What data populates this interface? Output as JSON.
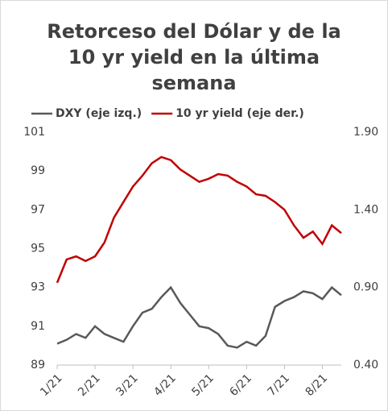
{
  "chart_data": {
    "type": "line",
    "title": "Retorceso del Dólar y de la 10 yr yield en la última semana",
    "categories": [
      "1/21",
      null,
      null,
      null,
      "2/21",
      null,
      null,
      null,
      "3/21",
      null,
      null,
      null,
      "4/21",
      null,
      null,
      null,
      "5/21",
      null,
      null,
      null,
      "6/21",
      null,
      null,
      null,
      "7/21",
      null,
      null,
      null,
      "8/21",
      null,
      null
    ],
    "series": [
      {
        "name": "DXY (eje izq.)",
        "color": "#595959",
        "values": [
          90.1,
          90.3,
          90.6,
          90.4,
          91.0,
          90.6,
          90.4,
          90.2,
          91.0,
          91.7,
          91.9,
          92.5,
          93.0,
          92.2,
          91.6,
          91.0,
          90.9,
          90.6,
          90.0,
          89.9,
          90.2,
          90.0,
          90.5,
          92.0,
          92.3,
          92.5,
          92.8,
          92.7,
          92.4,
          93.0,
          92.6
        ]
      },
      {
        "name": "10 yr yield (eje der.)",
        "color": "#c00000",
        "axis": "y2",
        "values": [
          0.93,
          1.08,
          1.1,
          1.07,
          1.1,
          1.19,
          1.35,
          1.45,
          1.55,
          1.62,
          1.7,
          1.74,
          1.72,
          1.66,
          1.62,
          1.58,
          1.6,
          1.63,
          1.62,
          1.58,
          1.55,
          1.5,
          1.49,
          1.45,
          1.4,
          1.3,
          1.22,
          1.26,
          1.18,
          1.3,
          1.25
        ]
      }
    ],
    "ylim": [
      89,
      101
    ],
    "yticks": [
      89,
      91,
      93,
      95,
      97,
      99,
      101
    ],
    "y2lim": [
      0.4,
      1.9
    ],
    "y2ticks": [
      {
        "value": 0.4,
        "label": "0.40"
      },
      {
        "value": 0.9,
        "label": "0.90"
      },
      {
        "value": 1.4,
        "label": "1.40"
      },
      {
        "value": 1.9,
        "label": "1.90"
      }
    ],
    "grid": false
  }
}
